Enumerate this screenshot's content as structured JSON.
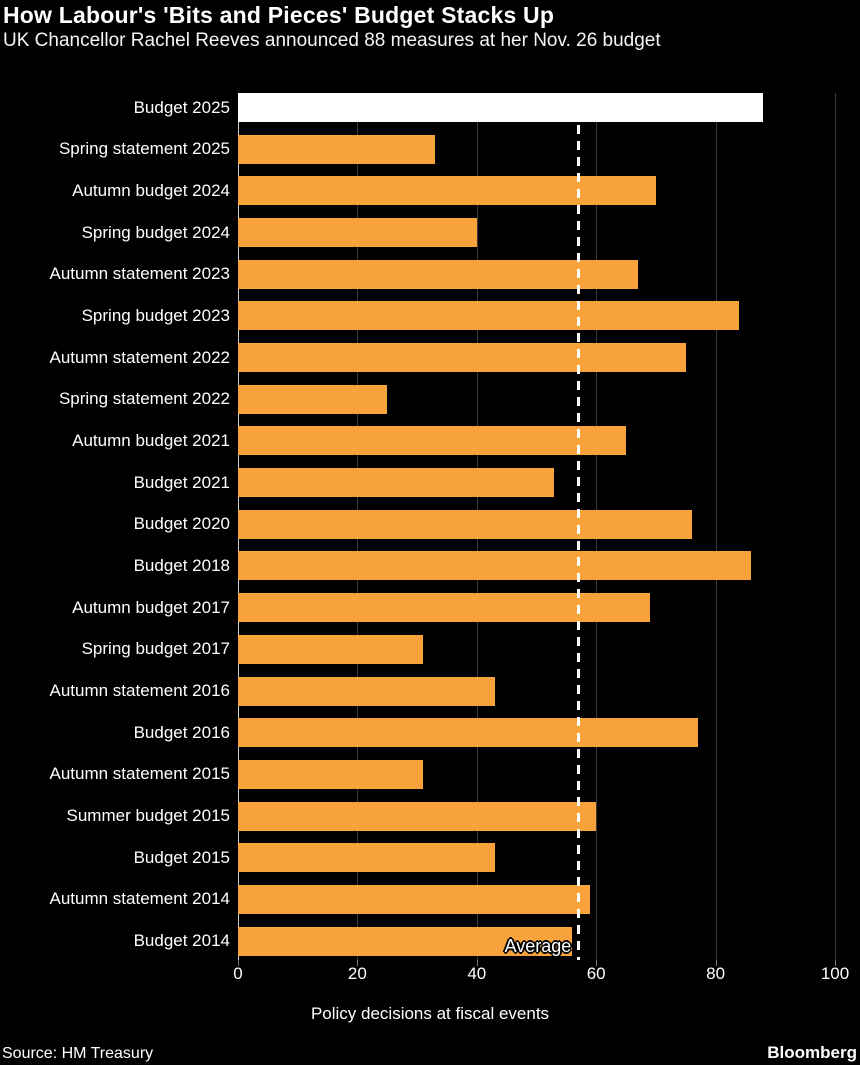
{
  "header": {
    "title": "How Labour's 'Bits and Pieces' Budget Stacks Up",
    "subtitle": "UK Chancellor Rachel Reeves announced 88 measures at her Nov. 26 budget"
  },
  "chart_data": {
    "type": "bar",
    "orientation": "horizontal",
    "title": "How Labour's 'Bits and Pieces' Budget Stacks Up",
    "subtitle": "UK Chancellor Rachel Reeves announced 88 measures at her Nov. 26 budget",
    "categories": [
      "Budget 2025",
      "Spring statement 2025",
      "Autumn budget 2024",
      "Spring budget 2024",
      "Autumn statement 2023",
      "Spring budget 2023",
      "Autumn statement 2022",
      "Spring statement 2022",
      "Autumn budget 2021",
      "Budget 2021",
      "Budget 2020",
      "Budget 2018",
      "Autumn budget 2017",
      "Spring budget 2017",
      "Autumn statement 2016",
      "Budget 2016",
      "Autumn statement 2015",
      "Summer budget 2015",
      "Budget 2015",
      "Autumn statement 2014",
      "Budget 2014"
    ],
    "values": [
      88,
      33,
      70,
      40,
      67,
      84,
      75,
      25,
      65,
      53,
      76,
      86,
      69,
      31,
      43,
      77,
      31,
      60,
      43,
      59,
      56
    ],
    "highlight_index": 0,
    "average": {
      "label": "Average",
      "value": 57
    },
    "xlabel": "Policy decisions at fiscal events",
    "xticks": [
      0,
      20,
      40,
      60,
      80,
      100
    ],
    "xlim": [
      0,
      100
    ],
    "grid": true,
    "legend": "none",
    "colors": {
      "bar": "#F8A23C",
      "highlight_bar": "#FFFFFF",
      "background": "#000000",
      "gridline": "#3A3A3A",
      "zero_axis": "#CFCFCF",
      "average_line": "#FFFFFF",
      "text": "#FFFFFF"
    }
  },
  "footer": {
    "source": "Source: HM Treasury",
    "brand": "Bloomberg"
  }
}
